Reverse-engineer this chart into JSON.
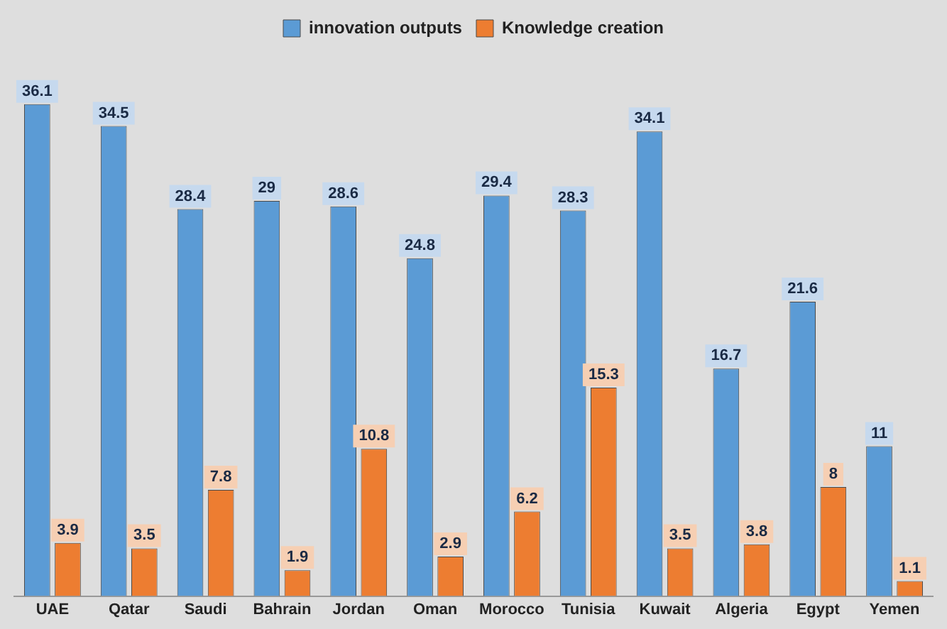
{
  "chart_data": {
    "type": "bar",
    "categories": [
      "UAE",
      "Qatar",
      "Saudi",
      "Bahrain",
      "Jordan",
      "Oman",
      "Morocco",
      "Tunisia",
      "Kuwait",
      "Algeria",
      "Egypt",
      "Yemen"
    ],
    "series": [
      {
        "name": "innovation outputs",
        "color": "#5b9bd5",
        "values": [
          36.1,
          34.5,
          28.4,
          29,
          28.6,
          24.8,
          29.4,
          28.3,
          34.1,
          16.7,
          21.6,
          11
        ]
      },
      {
        "name": "Knowledge creation",
        "color": "#ed7d31",
        "values": [
          3.9,
          3.5,
          7.8,
          1.9,
          10.8,
          2.9,
          6.2,
          15.3,
          3.5,
          3.8,
          8,
          1.1
        ]
      }
    ],
    "data_labels": true,
    "legend": "top",
    "grid": false
  }
}
